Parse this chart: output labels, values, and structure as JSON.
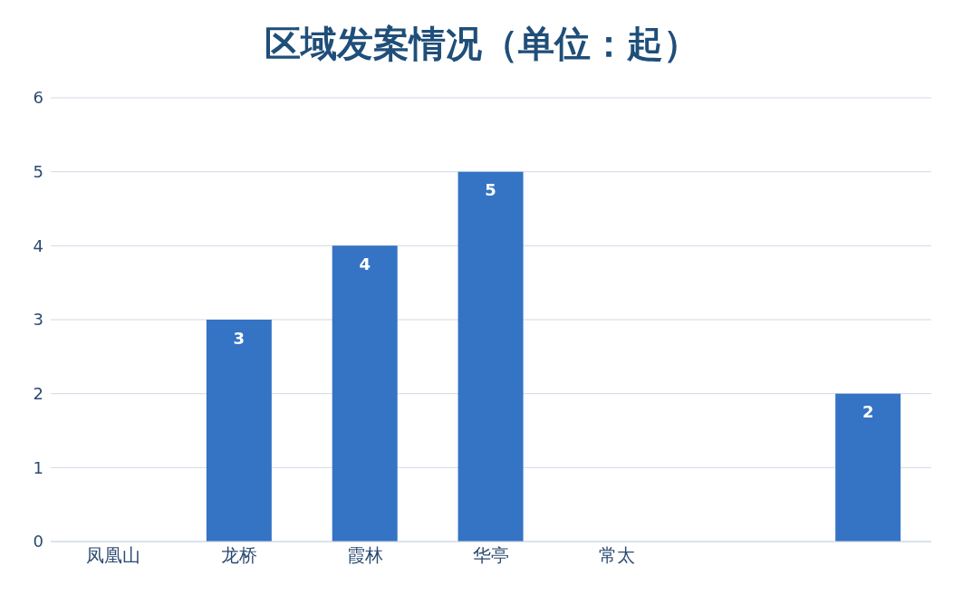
{
  "chart_data": {
    "type": "bar",
    "title": "区域发案情况（单位：起）",
    "categories": [
      "凤凰山",
      "龙桥",
      "霞林",
      "华亭",
      "常太",
      null,
      null
    ],
    "values": [
      0,
      3,
      4,
      5,
      0,
      0,
      2
    ],
    "color": "#3573c4",
    "value_labels": [
      null,
      "3",
      "4",
      "5",
      null,
      null,
      "2"
    ],
    "ylim": [
      0,
      6
    ],
    "yticks": [
      0,
      1,
      2,
      3,
      4,
      5,
      6
    ],
    "grid": "y",
    "legend": false
  }
}
